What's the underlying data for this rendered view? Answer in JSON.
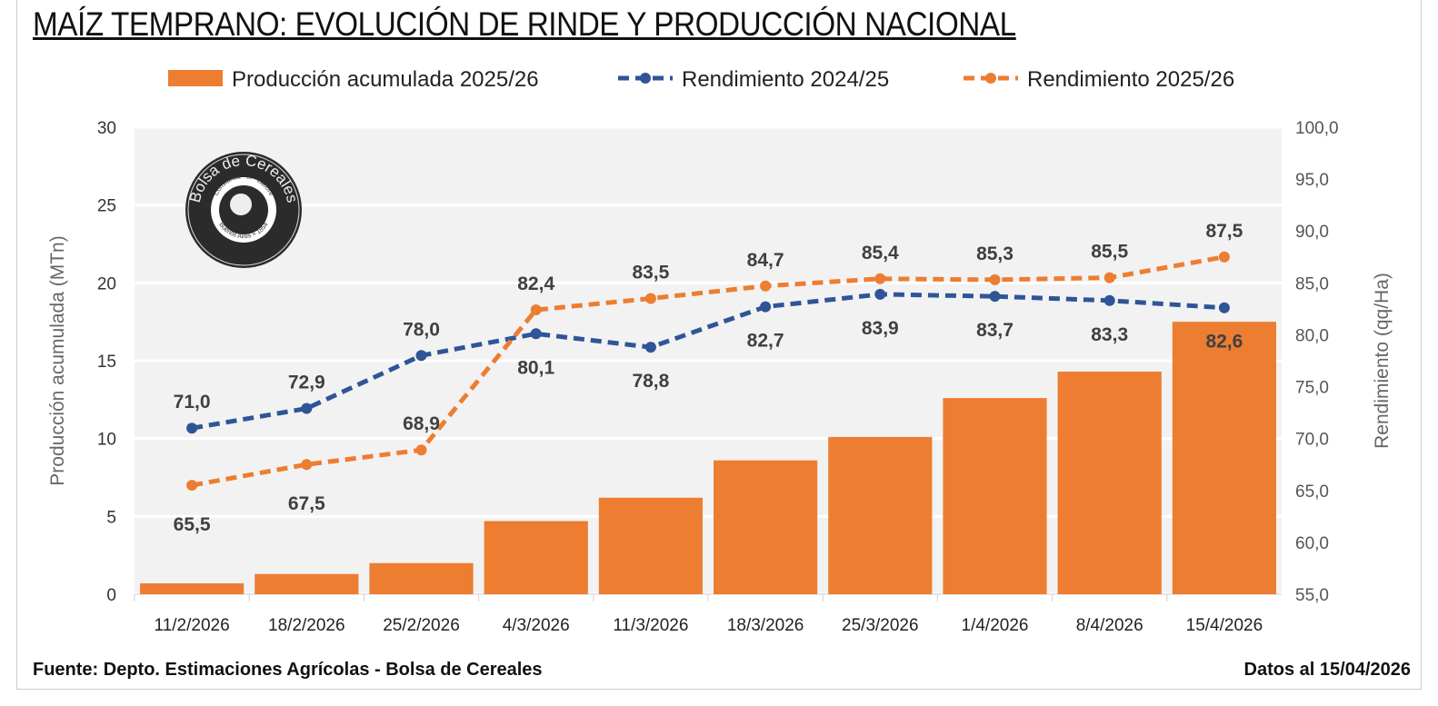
{
  "title": "MAÍZ TEMPRANO: EVOLUCIÓN DE RINDE Y PRODUCCIÓN NACIONAL",
  "source": "Fuente: Depto. Estimaciones Agrícolas - Bolsa de Cereales",
  "date_note": "Datos al 15/04/2026",
  "logo": {
    "outer": "Bolsa de Cereales",
    "inner": "Constantia · et · Labore",
    "bottom": "Buenos Aires × 1854"
  },
  "chart_data": {
    "type": "bar+line",
    "title": "MAÍZ TEMPRANO: EVOLUCIÓN DE RINDE Y PRODUCCIÓN NACIONAL",
    "categories": [
      "11/2/2026",
      "18/2/2026",
      "25/2/2026",
      "4/3/2026",
      "11/3/2026",
      "18/3/2026",
      "25/3/2026",
      "1/4/2026",
      "8/4/2026",
      "15/4/2026"
    ],
    "ylabel": "Producción acumulada (MTn)",
    "y2label": "Rendimiento (qq/Ha)",
    "ylim": [
      0,
      30
    ],
    "yticks": [
      "0",
      "5",
      "10",
      "15",
      "20",
      "25",
      "30"
    ],
    "y2lim": [
      55,
      100
    ],
    "y2ticks": [
      "55,0",
      "60,0",
      "65,0",
      "70,0",
      "75,0",
      "80,0",
      "85,0",
      "90,0",
      "95,0",
      "100,0"
    ],
    "grid": true,
    "legend": "top",
    "series": [
      {
        "name": "Producción acumulada 2025/26",
        "type": "bar",
        "axis": "left",
        "color": "#ED7D31",
        "values": [
          0.7,
          1.3,
          2.0,
          4.7,
          6.2,
          8.6,
          10.1,
          12.6,
          14.3,
          17.5
        ]
      },
      {
        "name": "Rendimiento 2024/25",
        "type": "line",
        "axis": "right",
        "color": "#2F5597",
        "values": [
          71.0,
          72.9,
          78.0,
          80.1,
          78.8,
          82.7,
          83.9,
          83.7,
          83.3,
          82.6
        ],
        "labels": [
          "71,0",
          "72,9",
          "78,0",
          "80,1",
          "78,8",
          "82,7",
          "83,9",
          "83,7",
          "83,3",
          "82,6"
        ]
      },
      {
        "name": "Rendimiento 2025/26",
        "type": "line",
        "axis": "right",
        "color": "#ED7D31",
        "values": [
          65.5,
          67.5,
          68.9,
          82.4,
          83.5,
          84.7,
          85.4,
          85.3,
          85.5,
          87.5
        ],
        "labels": [
          "65,5",
          "67,5",
          "68,9",
          "82,4",
          "83,5",
          "84,7",
          "85,4",
          "85,3",
          "85,5",
          "87,5"
        ]
      }
    ]
  }
}
